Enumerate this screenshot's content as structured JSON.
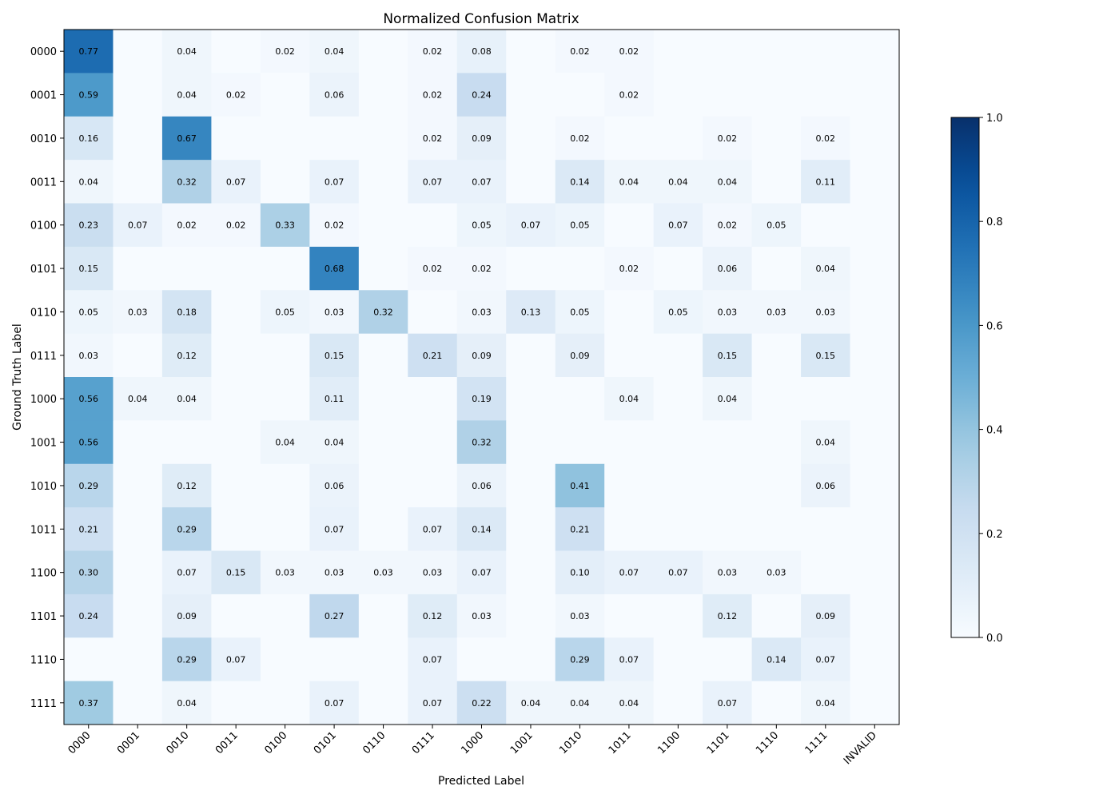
{
  "chart_data": {
    "type": "heatmap",
    "title": "Normalized Confusion Matrix",
    "xlabel": "Predicted Label",
    "ylabel": "Ground Truth Label",
    "x_categories": [
      "0000",
      "0001",
      "0010",
      "0011",
      "0100",
      "0101",
      "0110",
      "0111",
      "1000",
      "1001",
      "1010",
      "1011",
      "1100",
      "1101",
      "1110",
      "1111",
      "INVALID"
    ],
    "y_categories": [
      "0000",
      "0001",
      "0010",
      "0011",
      "0100",
      "0101",
      "0110",
      "0111",
      "1000",
      "1001",
      "1010",
      "1011",
      "1100",
      "1101",
      "1110",
      "1111"
    ],
    "values": [
      [
        0.77,
        0,
        0.04,
        0,
        0.02,
        0.04,
        0,
        0.02,
        0.08,
        0,
        0.02,
        0.02,
        0,
        0,
        0,
        0,
        0
      ],
      [
        0.59,
        0,
        0.04,
        0.02,
        0,
        0.06,
        0,
        0.02,
        0.24,
        0,
        0,
        0.02,
        0,
        0,
        0,
        0,
        0
      ],
      [
        0.16,
        0,
        0.67,
        0,
        0,
        0,
        0,
        0.02,
        0.09,
        0,
        0.02,
        0,
        0,
        0.02,
        0,
        0.02,
        0
      ],
      [
        0.04,
        0,
        0.32,
        0.07,
        0,
        0.07,
        0,
        0.07,
        0.07,
        0,
        0.14,
        0.04,
        0.04,
        0.04,
        0,
        0.11,
        0
      ],
      [
        0.23,
        0.07,
        0.02,
        0.02,
        0.33,
        0.02,
        0,
        0,
        0.05,
        0.07,
        0.05,
        0,
        0.07,
        0.02,
        0.05,
        0,
        0
      ],
      [
        0.15,
        0,
        0,
        0,
        0,
        0.68,
        0,
        0.02,
        0.02,
        0,
        0,
        0.02,
        0,
        0.06,
        0,
        0.04,
        0
      ],
      [
        0.05,
        0.03,
        0.18,
        0,
        0.05,
        0.03,
        0.32,
        0,
        0.03,
        0.13,
        0.05,
        0,
        0.05,
        0.03,
        0.03,
        0.03,
        0
      ],
      [
        0.03,
        0,
        0.12,
        0,
        0,
        0.15,
        0,
        0.21,
        0.09,
        0,
        0.09,
        0,
        0,
        0.15,
        0,
        0.15,
        0
      ],
      [
        0.56,
        0.04,
        0.04,
        0,
        0,
        0.11,
        0,
        0,
        0.19,
        0,
        0,
        0.04,
        0,
        0.04,
        0,
        0,
        0
      ],
      [
        0.56,
        0,
        0,
        0,
        0.04,
        0.04,
        0,
        0,
        0.32,
        0,
        0,
        0,
        0,
        0,
        0,
        0.04,
        0
      ],
      [
        0.29,
        0,
        0.12,
        0,
        0,
        0.06,
        0,
        0,
        0.06,
        0,
        0.41,
        0,
        0,
        0,
        0,
        0.06,
        0
      ],
      [
        0.21,
        0,
        0.29,
        0,
        0,
        0.07,
        0,
        0.07,
        0.14,
        0,
        0.21,
        0,
        0,
        0,
        0,
        0,
        0
      ],
      [
        0.3,
        0,
        0.07,
        0.15,
        0.03,
        0.03,
        0.03,
        0.03,
        0.07,
        0,
        0.1,
        0.07,
        0.07,
        0.03,
        0.03,
        0,
        0
      ],
      [
        0.24,
        0,
        0.09,
        0,
        0,
        0.27,
        0,
        0.12,
        0.03,
        0,
        0.03,
        0,
        0,
        0.12,
        0,
        0.09,
        0
      ],
      [
        0,
        0,
        0.29,
        0.07,
        0,
        0,
        0,
        0.07,
        0,
        0,
        0.29,
        0.07,
        0,
        0,
        0.14,
        0.07,
        0
      ],
      [
        0.37,
        0,
        0.04,
        0,
        0,
        0.07,
        0,
        0.07,
        0.22,
        0.04,
        0.04,
        0.04,
        0,
        0.07,
        0,
        0.04,
        0
      ]
    ],
    "value_format": "0.00",
    "colormap": "Blues",
    "vmin": 0.0,
    "vmax": 1.0,
    "colorbar_ticks": [
      "0.0",
      "0.2",
      "0.4",
      "0.6",
      "0.8",
      "1.0"
    ],
    "colorbar_tick_values": [
      0.0,
      0.2,
      0.4,
      0.6,
      0.8,
      1.0
    ],
    "colors": {
      "blues_low": "#f7fbff",
      "blues_high": "#08306b",
      "text_dark": "#000000"
    }
  }
}
